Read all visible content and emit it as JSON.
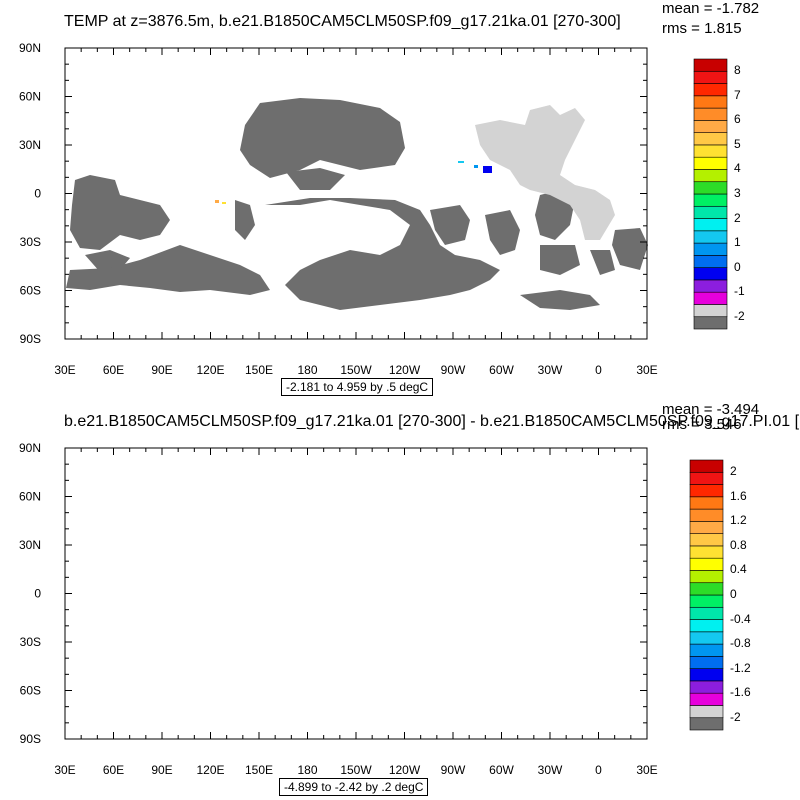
{
  "panels": [
    {
      "title": "TEMP at z=3876.5m, b.e21.B1850CAM5CLM50SP.f09_g17.21ka.01 [270-300]",
      "mean": "mean = -1.782",
      "rms": "rms = 1.815",
      "range_label": "-2.181 to 4.959 by .5 degC",
      "colorbar_labels": [
        "8",
        "7",
        "6",
        "5",
        "4",
        "3",
        "2",
        "1",
        "0",
        "-1",
        "-2"
      ]
    },
    {
      "title": "b.e21.B1850CAM5CLM50SP.f09_g17.21ka.01 [270-300] - b.e21.B1850CAM5CLM50SP.f09_g17.PI.01 [",
      "mean": "mean = -3.494",
      "rms": "rms = 3.546",
      "range_label": "-4.899 to -2.42 by .2 degC",
      "colorbar_labels": [
        "2",
        "1.6",
        "1.2",
        "0.8",
        "0.4",
        "0",
        "-0.4",
        "-0.8",
        "-1.2",
        "-1.6",
        "-2"
      ]
    }
  ],
  "axes": {
    "lon_labels": [
      "30E",
      "60E",
      "90E",
      "120E",
      "150E",
      "180",
      "150W",
      "120W",
      "90W",
      "60W",
      "30W",
      "0",
      "30E"
    ],
    "lat_labels": [
      "90N",
      "60N",
      "30N",
      "0",
      "30S",
      "60S",
      "90S"
    ]
  },
  "colors": {
    "colorbar_bottom_to_top": [
      "#6e6e6e",
      "#d3d3d3",
      "#e600dc",
      "#8c1ede",
      "#0000f0",
      "#006ef0",
      "#0096f0",
      "#14c8f0",
      "#00f0f0",
      "#00e6aa",
      "#00f064",
      "#2ddc28",
      "#b4f000",
      "#ffff00",
      "#ffe132",
      "#ffc846",
      "#ffaa46",
      "#ff8c28",
      "#ff7814",
      "#ff2800",
      "#f01414",
      "#c80000"
    ],
    "land_dark": "#6e6e6e",
    "land_light": "#d3d3d3"
  }
}
